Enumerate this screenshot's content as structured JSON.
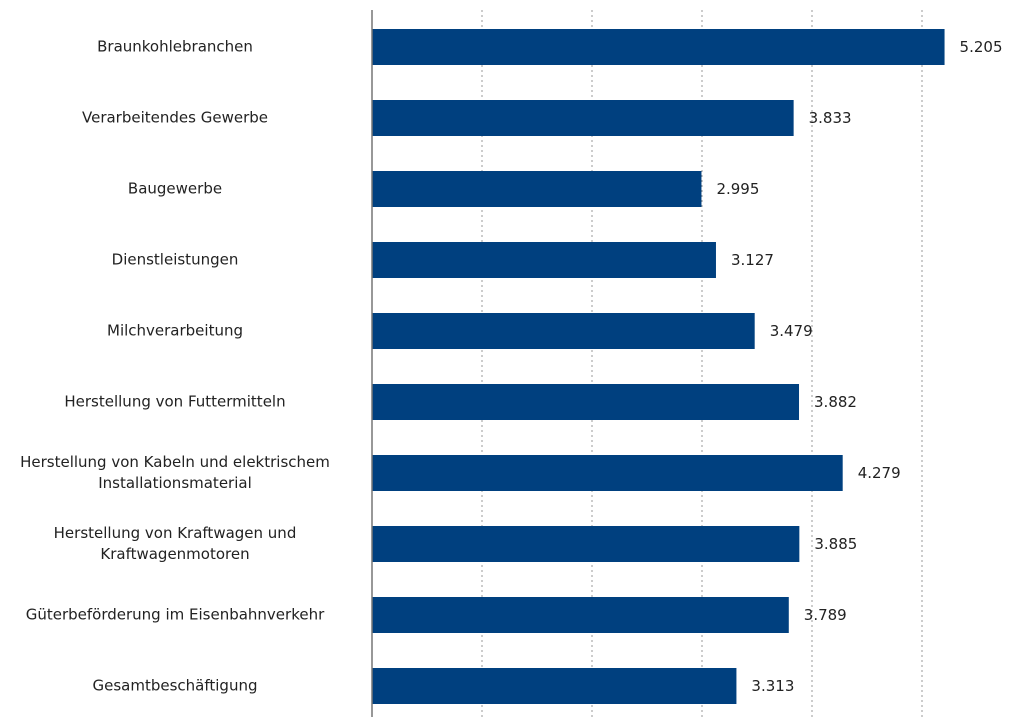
{
  "chart_data": {
    "type": "hbar",
    "categories": [
      "Braunkohlebranchen",
      "Verarbeitendes Gewerbe",
      "Baugewerbe",
      "Dienstleistungen",
      "Milchverarbeitung",
      "Herstellung von Futtermitteln",
      "Herstellung von Kabeln und elektrischem\nInstallationsmaterial",
      "Herstellung von Kraftwagen und\nKraftwagenmotoren",
      "Güterbeförderung im Eisenbahnverkehr",
      "Gesamtbeschäftigung"
    ],
    "values": [
      5205,
      3833,
      2995,
      3127,
      3479,
      3882,
      4279,
      3885,
      3789,
      3313
    ],
    "value_labels": [
      "5.205",
      "3.833",
      "2.995",
      "3.127",
      "3.479",
      "3.882",
      "4.279",
      "3.885",
      "3.789",
      "3.313"
    ],
    "color": "#00407f",
    "xlim": [
      0,
      5000
    ],
    "xticks": [
      1000,
      2000,
      3000,
      4000,
      5000
    ],
    "grid": true
  }
}
